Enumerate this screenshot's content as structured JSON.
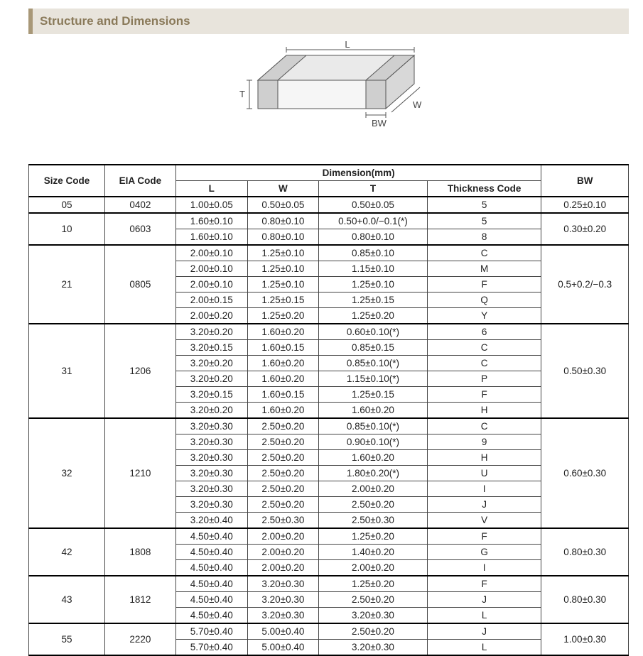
{
  "header": {
    "title": "Structure and Dimensions"
  },
  "diagram": {
    "labels": {
      "L": "L",
      "W": "W",
      "T": "T",
      "BW": "BW"
    },
    "stroke": "#666666",
    "fill_top": "#e8e8e8",
    "fill_side": "#d0d0d0",
    "fill_front": "#f4f4f4",
    "band_fill": "#c8c8c8"
  },
  "table": {
    "header_group": "Dimension(mm)",
    "columns": {
      "size": "Size Code",
      "eia": "EIA Code",
      "L": "L",
      "W": "W",
      "T": "T",
      "thick": "Thickness  Code",
      "BW": "BW"
    },
    "groups": [
      {
        "size": "05",
        "eia": "0402",
        "bw": "0.25±0.10",
        "rows": [
          {
            "L": "1.00±0.05",
            "W": "0.50±0.05",
            "T": "0.50±0.05",
            "tc": "5"
          }
        ]
      },
      {
        "size": "10",
        "eia": "0603",
        "bw": "0.30±0.20",
        "rows": [
          {
            "L": "1.60±0.10",
            "W": "0.80±0.10",
            "T": "0.50+0.0/−0.1(*)",
            "tc": "5"
          },
          {
            "L": "1.60±0.10",
            "W": "0.80±0.10",
            "T": "0.80±0.10",
            "tc": "8"
          }
        ]
      },
      {
        "size": "21",
        "eia": "0805",
        "bw": "0.5+0.2/−0.3",
        "rows": [
          {
            "L": "2.00±0.10",
            "W": "1.25±0.10",
            "T": "0.85±0.10",
            "tc": "C"
          },
          {
            "L": "2.00±0.10",
            "W": "1.25±0.10",
            "T": "1.15±0.10",
            "tc": "M"
          },
          {
            "L": "2.00±0.10",
            "W": "1.25±0.10",
            "T": "1.25±0.10",
            "tc": "F"
          },
          {
            "L": "2.00±0.15",
            "W": "1.25±0.15",
            "T": "1.25±0.15",
            "tc": "Q"
          },
          {
            "L": "2.00±0.20",
            "W": "1.25±0.20",
            "T": "1.25±0.20",
            "tc": "Y"
          }
        ]
      },
      {
        "size": "31",
        "eia": "1206",
        "bw": "0.50±0.30",
        "rows": [
          {
            "L": "3.20±0.20",
            "W": "1.60±0.20",
            "T": "0.60±0.10(*)",
            "tc": "6"
          },
          {
            "L": "3.20±0.15",
            "W": "1.60±0.15",
            "T": "0.85±0.15",
            "tc": "C"
          },
          {
            "L": "3.20±0.20",
            "W": "1.60±0.20",
            "T": "0.85±0.10(*)",
            "tc": "C"
          },
          {
            "L": "3.20±0.20",
            "W": "1.60±0.20",
            "T": "1.15±0.10(*)",
            "tc": "P"
          },
          {
            "L": "3.20±0.15",
            "W": "1.60±0.15",
            "T": "1.25±0.15",
            "tc": "F"
          },
          {
            "L": "3.20±0.20",
            "W": "1.60±0.20",
            "T": "1.60±0.20",
            "tc": "H"
          }
        ]
      },
      {
        "size": "32",
        "eia": "1210",
        "bw": "0.60±0.30",
        "rows": [
          {
            "L": "3.20±0.30",
            "W": "2.50±0.20",
            "T": "0.85±0.10(*)",
            "tc": "C"
          },
          {
            "L": "3.20±0.30",
            "W": "2.50±0.20",
            "T": "0.90±0.10(*)",
            "tc": "9"
          },
          {
            "L": "3.20±0.30",
            "W": "2.50±0.20",
            "T": "1.60±0.20",
            "tc": "H"
          },
          {
            "L": "3.20±0.30",
            "W": "2.50±0.20",
            "T": "1.80±0.20(*)",
            "tc": "U"
          },
          {
            "L": "3.20±0.30",
            "W": "2.50±0.20",
            "T": "2.00±0.20",
            "tc": "I"
          },
          {
            "L": "3.20±0.30",
            "W": "2.50±0.20",
            "T": "2.50±0.20",
            "tc": "J"
          },
          {
            "L": "3.20±0.40",
            "W": "2.50±0.30",
            "T": "2.50±0.30",
            "tc": "V"
          }
        ]
      },
      {
        "size": "42",
        "eia": "1808",
        "bw": "0.80±0.30",
        "rows": [
          {
            "L": "4.50±0.40",
            "W": "2.00±0.20",
            "T": "1.25±0.20",
            "tc": "F"
          },
          {
            "L": "4.50±0.40",
            "W": "2.00±0.20",
            "T": "1.40±0.20",
            "tc": "G"
          },
          {
            "L": "4.50±0.40",
            "W": "2.00±0.20",
            "T": "2.00±0.20",
            "tc": "I"
          }
        ]
      },
      {
        "size": "43",
        "eia": "1812",
        "bw": "0.80±0.30",
        "rows": [
          {
            "L": "4.50±0.40",
            "W": "3.20±0.30",
            "T": "1.25±0.20",
            "tc": "F"
          },
          {
            "L": "4.50±0.40",
            "W": "3.20±0.30",
            "T": "2.50±0.20",
            "tc": "J"
          },
          {
            "L": "4.50±0.40",
            "W": "3.20±0.30",
            "T": "3.20±0.30",
            "tc": "L"
          }
        ]
      },
      {
        "size": "55",
        "eia": "2220",
        "bw": "1.00±0.30",
        "rows": [
          {
            "L": "5.70±0.40",
            "W": "5.00±0.40",
            "T": "2.50±0.20",
            "tc": "J"
          },
          {
            "L": "5.70±0.40",
            "W": "5.00±0.40",
            "T": "3.20±0.30",
            "tc": "L"
          }
        ]
      }
    ]
  }
}
